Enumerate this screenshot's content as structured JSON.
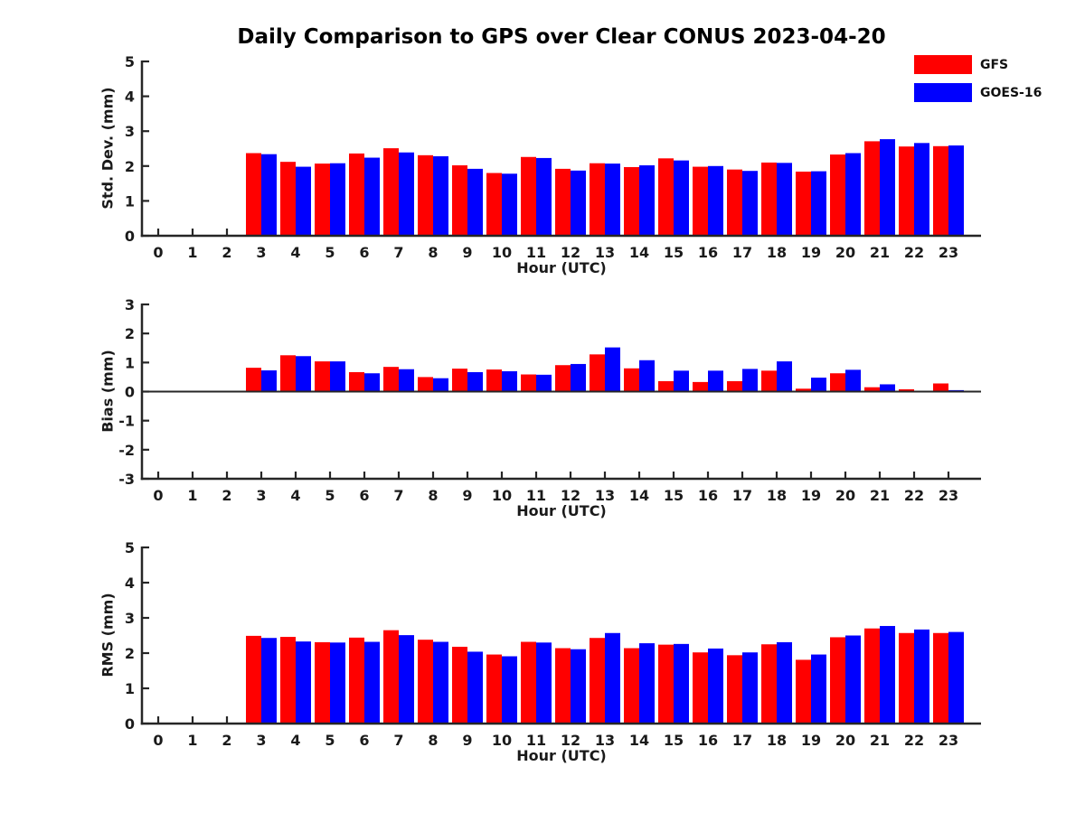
{
  "title": "Daily Comparison to GPS over Clear CONUS 2023-04-20",
  "legend": {
    "position": "top-right",
    "items": [
      {
        "label": "GFS",
        "color": "#ff0000"
      },
      {
        "label": "GOES-16",
        "color": "#0000ff"
      }
    ]
  },
  "colors": {
    "axis": "#262626",
    "text": "#1a1a1a",
    "background": "#ffffff",
    "gfs": "#ff0000",
    "goes16": "#0000ff"
  },
  "chart_data": [
    {
      "type": "bar",
      "ylabel": "Std. Dev. (mm)",
      "xlabel": "Hour (UTC)",
      "ylim": [
        0,
        5
      ],
      "yticks": [
        0,
        1,
        2,
        3,
        4,
        5
      ],
      "grid": false,
      "legend_position": "top-right",
      "categories": [
        "0",
        "1",
        "2",
        "3",
        "4",
        "5",
        "6",
        "7",
        "8",
        "9",
        "10",
        "11",
        "12",
        "13",
        "14",
        "15",
        "16",
        "17",
        "18",
        "19",
        "20",
        "21",
        "22",
        "23"
      ],
      "series": [
        {
          "name": "GFS",
          "color": "#ff0000",
          "values": [
            null,
            null,
            null,
            2.37,
            2.12,
            2.07,
            2.36,
            2.51,
            2.31,
            2.02,
            1.8,
            2.26,
            1.92,
            2.08,
            1.97,
            2.22,
            1.98,
            1.9,
            2.1,
            1.84,
            2.33,
            2.71,
            2.56,
            2.57
          ]
        },
        {
          "name": "GOES-16",
          "color": "#0000ff",
          "values": [
            null,
            null,
            null,
            2.34,
            1.98,
            2.08,
            2.24,
            2.39,
            2.28,
            1.92,
            1.78,
            2.23,
            1.87,
            2.07,
            2.02,
            2.16,
            2.0,
            1.86,
            2.09,
            1.85,
            2.37,
            2.77,
            2.66,
            2.59
          ]
        }
      ]
    },
    {
      "type": "bar",
      "ylabel": "Bias (mm)",
      "xlabel": "Hour (UTC)",
      "ylim": [
        -3,
        3
      ],
      "yticks": [
        -3,
        -2,
        -1,
        0,
        1,
        2,
        3
      ],
      "grid": false,
      "categories": [
        "0",
        "1",
        "2",
        "3",
        "4",
        "5",
        "6",
        "7",
        "8",
        "9",
        "10",
        "11",
        "12",
        "13",
        "14",
        "15",
        "16",
        "17",
        "18",
        "19",
        "20",
        "21",
        "22",
        "23"
      ],
      "series": [
        {
          "name": "GFS",
          "color": "#ff0000",
          "values": [
            null,
            null,
            null,
            0.82,
            1.25,
            1.04,
            0.67,
            0.85,
            0.5,
            0.79,
            0.76,
            0.59,
            0.91,
            1.28,
            0.8,
            0.36,
            0.33,
            0.36,
            0.72,
            0.1,
            0.63,
            0.15,
            0.08,
            0.28
          ]
        },
        {
          "name": "GOES-16",
          "color": "#0000ff",
          "values": [
            null,
            null,
            null,
            0.73,
            1.22,
            1.04,
            0.63,
            0.77,
            0.46,
            0.67,
            0.7,
            0.58,
            0.95,
            1.52,
            1.08,
            0.72,
            0.72,
            0.78,
            1.04,
            0.48,
            0.75,
            0.25,
            0.03,
            0.05
          ]
        }
      ]
    },
    {
      "type": "bar",
      "ylabel": "RMS (mm)",
      "xlabel": "Hour (UTC)",
      "ylim": [
        0,
        5
      ],
      "yticks": [
        0,
        1,
        2,
        3,
        4,
        5
      ],
      "grid": false,
      "categories": [
        "0",
        "1",
        "2",
        "3",
        "4",
        "5",
        "6",
        "7",
        "8",
        "9",
        "10",
        "11",
        "12",
        "13",
        "14",
        "15",
        "16",
        "17",
        "18",
        "19",
        "20",
        "21",
        "22",
        "23"
      ],
      "series": [
        {
          "name": "GFS",
          "color": "#ff0000",
          "values": [
            null,
            null,
            null,
            2.49,
            2.46,
            2.31,
            2.44,
            2.65,
            2.38,
            2.18,
            1.96,
            2.32,
            2.14,
            2.43,
            2.14,
            2.24,
            2.02,
            1.94,
            2.25,
            1.81,
            2.45,
            2.7,
            2.57,
            2.57
          ]
        },
        {
          "name": "GOES-16",
          "color": "#0000ff",
          "values": [
            null,
            null,
            null,
            2.43,
            2.33,
            2.3,
            2.32,
            2.51,
            2.32,
            2.04,
            1.91,
            2.3,
            2.11,
            2.57,
            2.28,
            2.26,
            2.13,
            2.02,
            2.31,
            1.96,
            2.5,
            2.77,
            2.67,
            2.6
          ]
        }
      ]
    }
  ]
}
